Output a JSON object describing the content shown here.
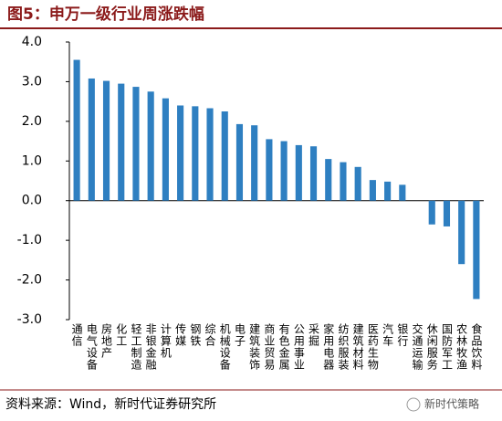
{
  "chart_data": {
    "type": "bar",
    "title": "图5：申万一级行业周涨跌幅",
    "categories": [
      "通信",
      "电气设备",
      "房地产",
      "化工",
      "轻工制造",
      "非银金融",
      "计算机",
      "传媒",
      "钢铁",
      "综合",
      "机械设备",
      "电子",
      "建筑装饰",
      "商业贸易",
      "有色金属",
      "公用事业",
      "采掘",
      "家用电器",
      "纺织服装",
      "建筑材料",
      "医药生物",
      "汽车",
      "银行",
      "交通运输",
      "休闲服务",
      "国防军工",
      "农林牧渔",
      "食品饮料"
    ],
    "values": [
      3.55,
      3.08,
      3.02,
      2.95,
      2.87,
      2.75,
      2.58,
      2.4,
      2.38,
      2.33,
      2.25,
      1.93,
      1.9,
      1.55,
      1.5,
      1.4,
      1.37,
      1.05,
      0.97,
      0.85,
      0.52,
      0.48,
      0.4,
      0.0,
      -0.6,
      -0.65,
      -1.6,
      -2.48
    ],
    "color": "#2e7fc1",
    "ylim": [
      -3,
      4
    ],
    "yticks": [
      {
        "value": 4,
        "label": "4.0"
      },
      {
        "value": 3,
        "label": "3.0"
      },
      {
        "value": 2,
        "label": "2.0"
      },
      {
        "value": 1,
        "label": "1.0"
      },
      {
        "value": 0,
        "label": "0.0"
      },
      {
        "value": -1,
        "label": "-1.0"
      },
      {
        "value": -2,
        "label": "-2.0"
      },
      {
        "value": -3,
        "label": "-3.0"
      }
    ],
    "grid": false,
    "source": "资料来源：Wind，新时代证券研究所"
  },
  "watermark": "新时代策略"
}
